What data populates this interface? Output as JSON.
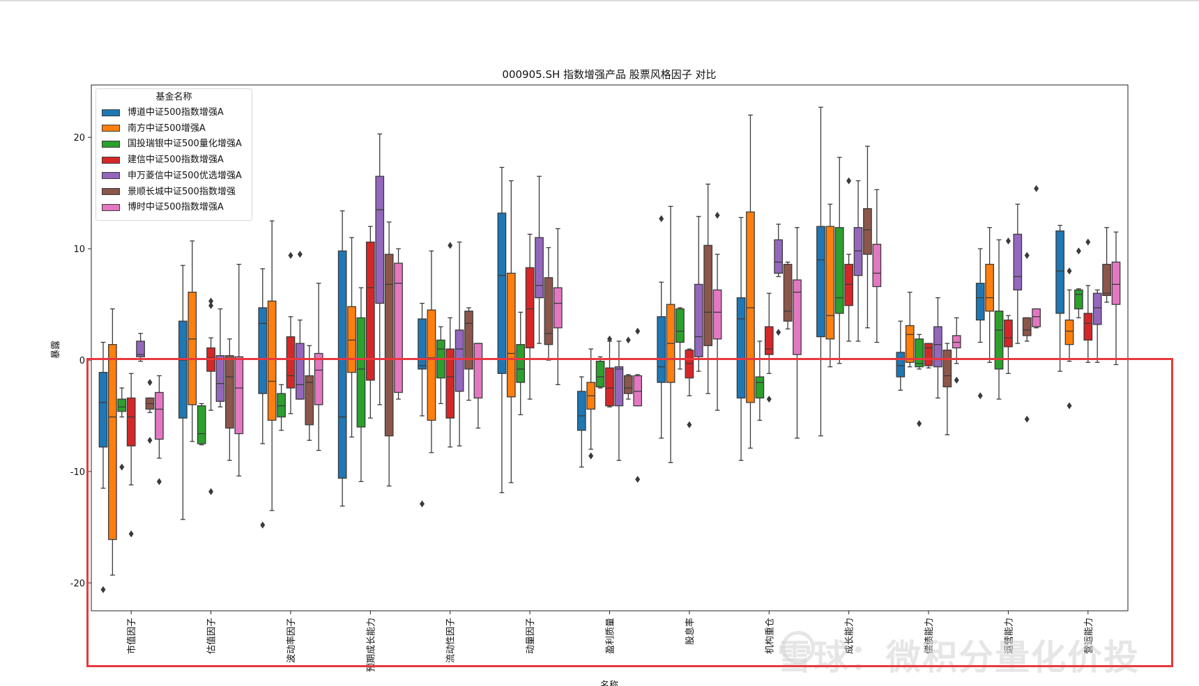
{
  "chart_data": {
    "type": "boxplot",
    "title": "000905.SH 指数增强产品 股票风格因子 对比",
    "xlabel": "名称",
    "ylabel": "暴露",
    "ylim": [
      -22.5,
      24.7
    ],
    "yticks": [
      -20,
      -10,
      0,
      10,
      20
    ],
    "legend_title": "基金名称",
    "legend_position": "top-left",
    "grid": false,
    "categories": [
      "市值因子",
      "估值因子",
      "波动率因子",
      "预期成长能力",
      "流动性因子",
      "动量因子",
      "盈利质量",
      "股息率",
      "机构重仓",
      "成长能力",
      "偿债能力",
      "运营能力",
      "营运能力"
    ],
    "series": [
      {
        "name": "博道中证500指数增强A",
        "color": "#1f77b4",
        "boxes": [
          {
            "whislo": -11.5,
            "q1": -7.8,
            "med": -3.8,
            "q3": -1.1,
            "whishi": 1.6,
            "fliers": [
              -20.6
            ]
          },
          {
            "whislo": -14.3,
            "q1": -5.2,
            "med": 0.0,
            "q3": 3.5,
            "whishi": 8.5,
            "fliers": []
          },
          {
            "whislo": -7.5,
            "q1": -3.0,
            "med": 3.3,
            "q3": 4.7,
            "whishi": 8.2,
            "fliers": [
              -14.8
            ]
          },
          {
            "whislo": -13.1,
            "q1": -10.6,
            "med": -5.1,
            "q3": 9.8,
            "whishi": 13.4,
            "fliers": []
          },
          {
            "whislo": -5.0,
            "q1": -0.8,
            "med": -0.5,
            "q3": 3.7,
            "whishi": 5.1,
            "fliers": [
              -12.9
            ]
          },
          {
            "whislo": -11.9,
            "q1": -1.2,
            "med": 7.6,
            "q3": 13.2,
            "whishi": 17.3,
            "fliers": []
          },
          {
            "whislo": -9.6,
            "q1": -6.3,
            "med": -5.0,
            "q3": -2.8,
            "whishi": -1.5,
            "fliers": []
          },
          {
            "whislo": -7.0,
            "q1": -2.0,
            "med": -0.6,
            "q3": 3.9,
            "whishi": 7.0,
            "fliers": [
              12.7
            ]
          },
          {
            "whislo": -9.0,
            "q1": -3.4,
            "med": 3.7,
            "q3": 5.6,
            "whishi": 12.8,
            "fliers": []
          },
          {
            "whislo": -6.8,
            "q1": 2.1,
            "med": 9.0,
            "q3": 12.0,
            "whishi": 22.7,
            "fliers": []
          },
          {
            "whislo": -2.7,
            "q1": -1.5,
            "med": -0.5,
            "q3": 0.7,
            "whishi": 3.5,
            "fliers": []
          },
          {
            "whislo": 1.6,
            "q1": 3.6,
            "med": 5.6,
            "q3": 6.9,
            "whishi": 10.0,
            "fliers": [
              -3.2
            ]
          },
          {
            "whislo": -1.0,
            "q1": 4.2,
            "med": 8.0,
            "q3": 11.6,
            "whishi": 12.1,
            "fliers": []
          }
        ]
      },
      {
        "name": "南方中证500增强A",
        "color": "#ff7f0e",
        "boxes": [
          {
            "whislo": -19.3,
            "q1": -16.1,
            "med": -5.1,
            "q3": 1.4,
            "whishi": 4.6,
            "fliers": []
          },
          {
            "whislo": -7.3,
            "q1": -4.0,
            "med": 1.9,
            "q3": 6.1,
            "whishi": 10.7,
            "fliers": []
          },
          {
            "whislo": -13.5,
            "q1": -5.4,
            "med": -1.9,
            "q3": 5.3,
            "whishi": 12.5,
            "fliers": []
          },
          {
            "whislo": -6.9,
            "q1": -1.1,
            "med": 1.8,
            "q3": 4.8,
            "whishi": 11.0,
            "fliers": []
          },
          {
            "whislo": -8.3,
            "q1": -5.4,
            "med": 0.2,
            "q3": 4.5,
            "whishi": 9.8,
            "fliers": []
          },
          {
            "whislo": -11.0,
            "q1": -3.3,
            "med": 0.6,
            "q3": 7.8,
            "whishi": 16.1,
            "fliers": []
          },
          {
            "whislo": -8.0,
            "q1": -4.4,
            "med": -3.2,
            "q3": -2.0,
            "whishi": 1.0,
            "fliers": [
              -8.6
            ]
          },
          {
            "whislo": -9.2,
            "q1": -2.0,
            "med": 1.5,
            "q3": 5.0,
            "whishi": 13.8,
            "fliers": []
          },
          {
            "whislo": -7.9,
            "q1": -3.8,
            "med": 4.7,
            "q3": 13.3,
            "whishi": 22.0,
            "fliers": []
          },
          {
            "whislo": -0.6,
            "q1": 1.9,
            "med": 4.0,
            "q3": 12.0,
            "whishi": 14.0,
            "fliers": []
          },
          {
            "whislo": -0.6,
            "q1": -0.2,
            "med": 2.3,
            "q3": 3.1,
            "whishi": 6.1,
            "fliers": []
          },
          {
            "whislo": -0.2,
            "q1": 4.4,
            "med": 5.6,
            "q3": 8.6,
            "whishi": 11.9,
            "fliers": []
          },
          {
            "whislo": -0.1,
            "q1": 1.4,
            "med": 2.6,
            "q3": 3.6,
            "whishi": 6.3,
            "fliers": [
              8.0,
              -4.1
            ]
          }
        ]
      },
      {
        "name": "国投瑞银中证500量化增强A",
        "color": "#2ca02c",
        "boxes": [
          {
            "whislo": -5.1,
            "q1": -4.6,
            "med": -4.2,
            "q3": -3.5,
            "whishi": -2.5,
            "fliers": [
              -9.6
            ]
          },
          {
            "whislo": -7.6,
            "q1": -7.5,
            "med": -6.6,
            "q3": -4.1,
            "whishi": -3.9,
            "fliers": []
          },
          {
            "whislo": -6.3,
            "q1": -5.1,
            "med": -4.1,
            "q3": -3.0,
            "whishi": -2.2,
            "fliers": []
          },
          {
            "whislo": -10.9,
            "q1": -6.0,
            "med": -0.8,
            "q3": 3.8,
            "whishi": 6.5,
            "fliers": []
          },
          {
            "whislo": -3.9,
            "q1": -1.6,
            "med": 1.0,
            "q3": 1.8,
            "whishi": 3.0,
            "fliers": []
          },
          {
            "whislo": -4.9,
            "q1": -2.0,
            "med": -0.8,
            "q3": 1.4,
            "whishi": 4.3,
            "fliers": []
          },
          {
            "whislo": -2.5,
            "q1": -2.4,
            "med": -1.5,
            "q3": -0.1,
            "whishi": 0.3,
            "fliers": []
          },
          {
            "whislo": -0.8,
            "q1": 1.6,
            "med": 2.6,
            "q3": 4.6,
            "whishi": 4.7,
            "fliers": []
          },
          {
            "whislo": -5.4,
            "q1": -3.4,
            "med": -2.0,
            "q3": -1.5,
            "whishi": 1.7,
            "fliers": []
          },
          {
            "whislo": -0.3,
            "q1": 4.2,
            "med": 5.6,
            "q3": 11.9,
            "whishi": 18.2,
            "fliers": []
          },
          {
            "whislo": -0.8,
            "q1": -0.6,
            "med": -0.3,
            "q3": 1.9,
            "whishi": 2.3,
            "fliers": [
              -5.7
            ]
          },
          {
            "whislo": -3.5,
            "q1": -0.8,
            "med": 2.7,
            "q3": 4.4,
            "whishi": 10.8,
            "fliers": []
          },
          {
            "whislo": 3.8,
            "q1": 4.6,
            "med": 5.9,
            "q3": 6.3,
            "whishi": 6.4,
            "fliers": [
              9.8
            ]
          }
        ]
      },
      {
        "name": "建信中证500指数增强A",
        "color": "#d62728",
        "boxes": [
          {
            "whislo": -11.2,
            "q1": -7.7,
            "med": -5.1,
            "q3": -3.4,
            "whishi": -1.2,
            "fliers": [
              -15.6
            ]
          },
          {
            "whislo": -4.5,
            "q1": -1.0,
            "med": 0.2,
            "q3": 1.1,
            "whishi": 2.0,
            "fliers": [
              5.3,
              4.9,
              -11.8
            ]
          },
          {
            "whislo": -4.8,
            "q1": -2.5,
            "med": -1.4,
            "q3": 2.1,
            "whishi": 3.9,
            "fliers": [
              9.4
            ]
          },
          {
            "whislo": -5.2,
            "q1": -1.8,
            "med": 6.5,
            "q3": 10.6,
            "whishi": 12.0,
            "fliers": []
          },
          {
            "whislo": -7.8,
            "q1": -5.2,
            "med": -1.5,
            "q3": 1.0,
            "whishi": 3.8,
            "fliers": [
              10.3
            ]
          },
          {
            "whislo": -3.5,
            "q1": 1.1,
            "med": 4.6,
            "q3": 8.3,
            "whishi": 11.3,
            "fliers": []
          },
          {
            "whislo": -4.2,
            "q1": -4.1,
            "med": -2.5,
            "q3": -0.7,
            "whishi": 1.7,
            "fliers": [
              1.9
            ]
          },
          {
            "whislo": -3.2,
            "q1": -1.6,
            "med": -0.3,
            "q3": 0.9,
            "whishi": 1.0,
            "fliers": [
              -5.8
            ]
          },
          {
            "whislo": -1.2,
            "q1": 0.5,
            "med": 1.0,
            "q3": 3.0,
            "whishi": 6.0,
            "fliers": [
              -3.5
            ]
          },
          {
            "whislo": 1.7,
            "q1": 4.9,
            "med": 6.8,
            "q3": 8.6,
            "whishi": 9.5,
            "fliers": [
              16.1
            ]
          },
          {
            "whislo": -0.7,
            "q1": -0.5,
            "med": 1.1,
            "q3": 1.5,
            "whishi": 1.5,
            "fliers": []
          },
          {
            "whislo": -1.2,
            "q1": 1.2,
            "med": 2.0,
            "q3": 3.6,
            "whishi": 4.0,
            "fliers": [
              10.7
            ]
          },
          {
            "whislo": -0.2,
            "q1": 1.8,
            "med": 3.3,
            "q3": 4.2,
            "whishi": 6.7,
            "fliers": [
              10.6
            ]
          }
        ]
      },
      {
        "name": "申万菱信中证500优选增强A",
        "color": "#9467bd",
        "boxes": [
          {
            "whislo": -0.1,
            "q1": 0.3,
            "med": 0.5,
            "q3": 1.7,
            "whishi": 2.4,
            "fliers": []
          },
          {
            "whislo": -4.2,
            "q1": -3.7,
            "med": -2.1,
            "q3": 0.4,
            "whishi": 4.6,
            "fliers": []
          },
          {
            "whislo": -3.5,
            "q1": -3.5,
            "med": -2.2,
            "q3": 1.5,
            "whishi": 3.6,
            "fliers": [
              9.5
            ]
          },
          {
            "whislo": -4.0,
            "q1": 5.1,
            "med": 13.5,
            "q3": 16.5,
            "whishi": 20.3,
            "fliers": []
          },
          {
            "whislo": -7.7,
            "q1": -2.8,
            "med": 1.0,
            "q3": 2.7,
            "whishi": 10.6,
            "fliers": []
          },
          {
            "whislo": 1.5,
            "q1": 5.6,
            "med": 6.7,
            "q3": 11.0,
            "whishi": 16.5,
            "fliers": []
          },
          {
            "whislo": -9.0,
            "q1": -4.1,
            "med": -0.8,
            "q3": -0.6,
            "whishi": 1.7,
            "fliers": []
          },
          {
            "whislo": -1.0,
            "q1": 0.3,
            "med": 2.1,
            "q3": 6.8,
            "whishi": 12.9,
            "fliers": []
          },
          {
            "whislo": 7.5,
            "q1": 7.8,
            "med": 8.8,
            "q3": 10.8,
            "whishi": 12.2,
            "fliers": [
              2.5
            ]
          },
          {
            "whislo": 1.7,
            "q1": 7.6,
            "med": 9.8,
            "q3": 11.9,
            "whishi": 16.1,
            "fliers": []
          },
          {
            "whislo": -3.4,
            "q1": -0.6,
            "med": 1.4,
            "q3": 3.0,
            "whishi": 5.6,
            "fliers": []
          },
          {
            "whislo": 1.5,
            "q1": 6.3,
            "med": 7.5,
            "q3": 11.3,
            "whishi": 14.0,
            "fliers": []
          },
          {
            "whislo": -0.2,
            "q1": 3.2,
            "med": 4.7,
            "q3": 6.0,
            "whishi": 6.3,
            "fliers": []
          }
        ]
      },
      {
        "name": "景顺长城中证500指数增强",
        "color": "#8c564b",
        "boxes": [
          {
            "whislo": -4.7,
            "q1": -4.4,
            "med": -3.9,
            "q3": -3.4,
            "whishi": -3.4,
            "fliers": [
              -7.2,
              -2.0
            ]
          },
          {
            "whislo": -9.0,
            "q1": -6.1,
            "med": -1.5,
            "q3": 0.4,
            "whishi": 1.9,
            "fliers": []
          },
          {
            "whislo": -7.2,
            "q1": -5.8,
            "med": -2.0,
            "q3": -1.4,
            "whishi": 1.3,
            "fliers": []
          },
          {
            "whislo": -11.3,
            "q1": -6.8,
            "med": 6.8,
            "q3": 9.5,
            "whishi": 12.4,
            "fliers": []
          },
          {
            "whislo": -3.6,
            "q1": -0.8,
            "med": 3.3,
            "q3": 4.4,
            "whishi": 4.7,
            "fliers": []
          },
          {
            "whislo": 0.0,
            "q1": 1.4,
            "med": 2.4,
            "q3": 7.4,
            "whishi": 10.1,
            "fliers": []
          },
          {
            "whislo": -3.5,
            "q1": -3.0,
            "med": -2.5,
            "q3": -1.4,
            "whishi": -1.3,
            "fliers": [
              1.8
            ]
          },
          {
            "whislo": -3.0,
            "q1": 1.3,
            "med": 4.3,
            "q3": 10.3,
            "whishi": 15.8,
            "fliers": []
          },
          {
            "whislo": 2.8,
            "q1": 3.5,
            "med": 4.4,
            "q3": 8.6,
            "whishi": 8.8,
            "fliers": []
          },
          {
            "whislo": 2.9,
            "q1": 9.5,
            "med": 11.7,
            "q3": 13.6,
            "whishi": 19.2,
            "fliers": []
          },
          {
            "whislo": -6.7,
            "q1": -2.4,
            "med": -1.4,
            "q3": 0.9,
            "whishi": 1.5,
            "fliers": []
          },
          {
            "whislo": 1.7,
            "q1": 2.2,
            "med": 2.7,
            "q3": 3.8,
            "whishi": 3.8,
            "fliers": [
              9.4,
              -5.3
            ]
          },
          {
            "whislo": 5.2,
            "q1": 5.8,
            "med": 6.0,
            "q3": 8.6,
            "whishi": 11.9,
            "fliers": []
          }
        ]
      },
      {
        "name": "博时中证500指数增强A",
        "color": "#e377c2",
        "boxes": [
          {
            "whislo": -8.8,
            "q1": -7.1,
            "med": -4.4,
            "q3": -2.9,
            "whishi": -1.4,
            "fliers": [
              -10.9
            ]
          },
          {
            "whislo": -10.4,
            "q1": -6.6,
            "med": -2.5,
            "q3": 0.3,
            "whishi": 8.6,
            "fliers": []
          },
          {
            "whislo": -8.1,
            "q1": -4.0,
            "med": -0.9,
            "q3": 0.6,
            "whishi": 6.9,
            "fliers": []
          },
          {
            "whislo": -3.5,
            "q1": -2.9,
            "med": 6.9,
            "q3": 8.7,
            "whishi": 10.0,
            "fliers": []
          },
          {
            "whislo": -6.1,
            "q1": -3.4,
            "med": 1.5,
            "q3": 1.5,
            "whishi": 1.5,
            "fliers": []
          },
          {
            "whislo": -2.2,
            "q1": 2.9,
            "med": 5.1,
            "q3": 6.5,
            "whishi": 11.8,
            "fliers": []
          },
          {
            "whislo": -4.1,
            "q1": -4.1,
            "med": -2.8,
            "q3": -1.4,
            "whishi": -1.3,
            "fliers": [
              2.6,
              -10.7
            ]
          },
          {
            "whislo": -4.5,
            "q1": 1.9,
            "med": 4.3,
            "q3": 6.3,
            "whishi": 9.5,
            "fliers": [
              13.0
            ]
          },
          {
            "whislo": -7.0,
            "q1": 0.5,
            "med": 6.1,
            "q3": 7.2,
            "whishi": 11.9,
            "fliers": []
          },
          {
            "whislo": 1.6,
            "q1": 6.6,
            "med": 7.8,
            "q3": 10.4,
            "whishi": 15.3,
            "fliers": []
          },
          {
            "whislo": -0.3,
            "q1": 1.1,
            "med": 1.6,
            "q3": 2.2,
            "whishi": 3.8,
            "fliers": [
              -1.8
            ]
          },
          {
            "whislo": 2.9,
            "q1": 3.0,
            "med": 3.9,
            "q3": 4.6,
            "whishi": 4.6,
            "fliers": [
              15.4
            ]
          },
          {
            "whislo": -0.4,
            "q1": 5.0,
            "med": 6.8,
            "q3": 8.8,
            "whishi": 11.5,
            "fliers": []
          }
        ]
      }
    ]
  },
  "watermark": {
    "text": "雪球：微积分量化价投"
  }
}
